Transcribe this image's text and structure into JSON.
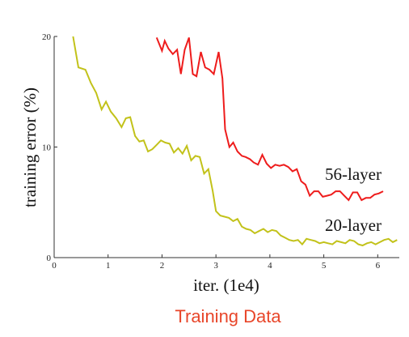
{
  "caption": "Training Data",
  "chart_data": {
    "type": "line",
    "xlabel": "iter. (1e4)",
    "ylabel": "training error (%)",
    "xlim": [
      0,
      6.4
    ],
    "ylim": [
      0,
      20
    ],
    "x_ticks": [
      0,
      1,
      2,
      3,
      4,
      5,
      6
    ],
    "y_ticks": [
      0,
      10,
      20
    ],
    "grid": false,
    "colors": {
      "56-layer": "#ee1c1c",
      "20-layer": "#c2c21a"
    },
    "series": [
      {
        "name": "56-layer",
        "points": [
          [
            1.9,
            19.9
          ],
          [
            2.0,
            18.7
          ],
          [
            2.05,
            19.6
          ],
          [
            2.12,
            18.9
          ],
          [
            2.2,
            18.4
          ],
          [
            2.28,
            18.8
          ],
          [
            2.35,
            16.6
          ],
          [
            2.42,
            18.8
          ],
          [
            2.5,
            19.9
          ],
          [
            2.57,
            16.6
          ],
          [
            2.64,
            16.4
          ],
          [
            2.72,
            18.6
          ],
          [
            2.8,
            17.2
          ],
          [
            2.88,
            17.0
          ],
          [
            2.96,
            16.6
          ],
          [
            3.05,
            18.6
          ],
          [
            3.12,
            16.2
          ],
          [
            3.17,
            11.6
          ],
          [
            3.25,
            10.0
          ],
          [
            3.32,
            10.4
          ],
          [
            3.4,
            9.6
          ],
          [
            3.48,
            9.2
          ],
          [
            3.55,
            9.1
          ],
          [
            3.63,
            8.9
          ],
          [
            3.7,
            8.6
          ],
          [
            3.78,
            8.4
          ],
          [
            3.86,
            9.3
          ],
          [
            3.94,
            8.5
          ],
          [
            4.02,
            8.1
          ],
          [
            4.1,
            8.4
          ],
          [
            4.18,
            8.3
          ],
          [
            4.26,
            8.4
          ],
          [
            4.34,
            8.2
          ],
          [
            4.42,
            7.8
          ],
          [
            4.5,
            8.0
          ],
          [
            4.58,
            6.9
          ],
          [
            4.66,
            6.6
          ],
          [
            4.74,
            5.6
          ],
          [
            4.82,
            6.0
          ],
          [
            4.9,
            6.0
          ],
          [
            4.98,
            5.5
          ],
          [
            5.06,
            5.6
          ],
          [
            5.14,
            5.7
          ],
          [
            5.22,
            6.0
          ],
          [
            5.3,
            6.0
          ],
          [
            5.38,
            5.6
          ],
          [
            5.46,
            5.2
          ],
          [
            5.54,
            5.9
          ],
          [
            5.62,
            5.9
          ],
          [
            5.7,
            5.2
          ],
          [
            5.78,
            5.4
          ],
          [
            5.86,
            5.4
          ],
          [
            5.94,
            5.7
          ],
          [
            6.02,
            5.8
          ],
          [
            6.1,
            6.0
          ]
        ]
      },
      {
        "name": "20-layer",
        "points": [
          [
            0.35,
            20.0
          ],
          [
            0.45,
            17.2
          ],
          [
            0.58,
            17.0
          ],
          [
            0.68,
            15.8
          ],
          [
            0.78,
            14.9
          ],
          [
            0.88,
            13.4
          ],
          [
            0.96,
            14.1
          ],
          [
            1.05,
            13.2
          ],
          [
            1.15,
            12.6
          ],
          [
            1.25,
            11.8
          ],
          [
            1.33,
            12.6
          ],
          [
            1.41,
            12.7
          ],
          [
            1.5,
            11.0
          ],
          [
            1.58,
            10.5
          ],
          [
            1.66,
            10.6
          ],
          [
            1.74,
            9.6
          ],
          [
            1.82,
            9.8
          ],
          [
            1.9,
            10.2
          ],
          [
            1.98,
            10.6
          ],
          [
            2.06,
            10.4
          ],
          [
            2.14,
            10.3
          ],
          [
            2.22,
            9.5
          ],
          [
            2.3,
            9.9
          ],
          [
            2.38,
            9.4
          ],
          [
            2.46,
            10.1
          ],
          [
            2.54,
            8.8
          ],
          [
            2.62,
            9.2
          ],
          [
            2.7,
            9.1
          ],
          [
            2.78,
            7.6
          ],
          [
            2.86,
            8.0
          ],
          [
            2.94,
            6.0
          ],
          [
            3.0,
            4.2
          ],
          [
            3.08,
            3.8
          ],
          [
            3.16,
            3.7
          ],
          [
            3.24,
            3.6
          ],
          [
            3.32,
            3.3
          ],
          [
            3.4,
            3.5
          ],
          [
            3.48,
            2.8
          ],
          [
            3.56,
            2.6
          ],
          [
            3.64,
            2.5
          ],
          [
            3.72,
            2.2
          ],
          [
            3.8,
            2.4
          ],
          [
            3.88,
            2.6
          ],
          [
            3.96,
            2.3
          ],
          [
            4.04,
            2.5
          ],
          [
            4.12,
            2.4
          ],
          [
            4.2,
            2.0
          ],
          [
            4.28,
            1.8
          ],
          [
            4.36,
            1.6
          ],
          [
            4.44,
            1.5
          ],
          [
            4.52,
            1.6
          ],
          [
            4.6,
            1.2
          ],
          [
            4.68,
            1.7
          ],
          [
            4.76,
            1.6
          ],
          [
            4.84,
            1.5
          ],
          [
            4.92,
            1.3
          ],
          [
            5.0,
            1.4
          ],
          [
            5.08,
            1.3
          ],
          [
            5.16,
            1.2
          ],
          [
            5.24,
            1.5
          ],
          [
            5.32,
            1.4
          ],
          [
            5.4,
            1.3
          ],
          [
            5.48,
            1.6
          ],
          [
            5.56,
            1.5
          ],
          [
            5.64,
            1.2
          ],
          [
            5.72,
            1.1
          ],
          [
            5.8,
            1.3
          ],
          [
            5.88,
            1.4
          ],
          [
            5.96,
            1.2
          ],
          [
            6.04,
            1.4
          ],
          [
            6.12,
            1.6
          ],
          [
            6.2,
            1.7
          ],
          [
            6.28,
            1.4
          ],
          [
            6.36,
            1.6
          ]
        ]
      }
    ]
  }
}
